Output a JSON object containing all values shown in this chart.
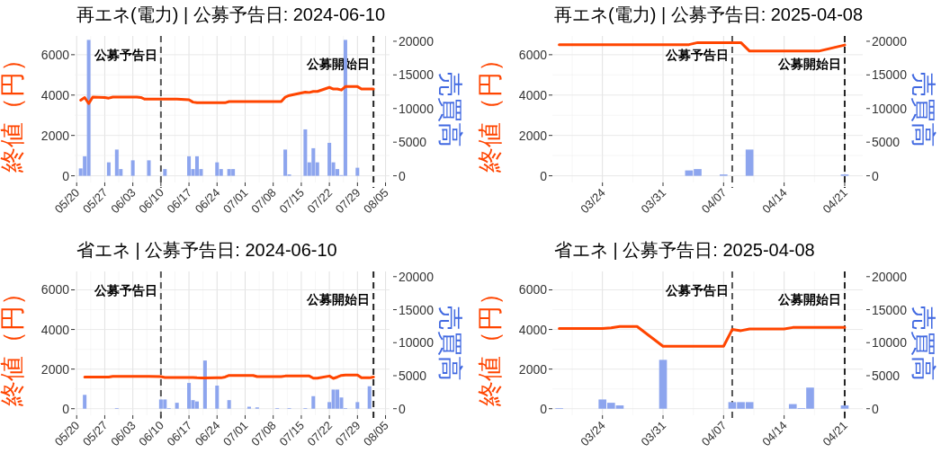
{
  "chart_data": [
    {
      "type": "bar",
      "title": "再エネ(電力) | 公募予告日: 2024-06-10",
      "ylabel": "終値（円）",
      "y2label": "売買高",
      "grid": true,
      "xlim": [
        "2024-05-19T12:00",
        "2024-08-06T00:00"
      ],
      "xticks": [
        {
          "value": "2024-05-20",
          "label": "05/20"
        },
        {
          "value": "2024-05-27",
          "label": "05/27"
        },
        {
          "value": "2024-06-03",
          "label": "06/03"
        },
        {
          "value": "2024-06-10",
          "label": "06/10"
        },
        {
          "value": "2024-06-17",
          "label": "06/17"
        },
        {
          "value": "2024-06-24",
          "label": "06/24"
        },
        {
          "value": "2024-07-01",
          "label": "07/01"
        },
        {
          "value": "2024-07-08",
          "label": "07/08"
        },
        {
          "value": "2024-07-15",
          "label": "07/15"
        },
        {
          "value": "2024-07-22",
          "label": "07/22"
        },
        {
          "value": "2024-07-29",
          "label": "07/29"
        },
        {
          "value": "2024-08-05",
          "label": "08/05"
        }
      ],
      "ylim": [
        -330,
        6930
      ],
      "yticks": [
        0,
        2000,
        4000,
        6000
      ],
      "y2lim": [
        -990,
        20790
      ],
      "y2ticks": [
        0,
        5000,
        10000,
        15000,
        20000
      ],
      "ref_lines": [
        {
          "axis": "x",
          "value": "2024-06-10",
          "label": "公募予告日",
          "color": "#555555",
          "line_style": "dashed"
        },
        {
          "axis": "x",
          "value": "2024-08-02",
          "label": "公募開始日",
          "color": "#222222",
          "line_style": "dashed"
        }
      ],
      "series": [
        {
          "axis": "y2",
          "color": "#8da5ee",
          "x": [
            "2024-05-21",
            "2024-05-22",
            "2024-05-23",
            "2024-05-28",
            "2024-05-30",
            "2024-05-31",
            "2024-06-03",
            "2024-06-07",
            "2024-06-11",
            "2024-06-17",
            "2024-06-18",
            "2024-06-19",
            "2024-06-20",
            "2024-06-24",
            "2024-06-25",
            "2024-06-27",
            "2024-06-28",
            "2024-07-11",
            "2024-07-12",
            "2024-07-16",
            "2024-07-17",
            "2024-07-18",
            "2024-07-19",
            "2024-07-22",
            "2024-07-23",
            "2024-07-24",
            "2024-07-25",
            "2024-07-26",
            "2024-07-29"
          ],
          "values": [
            1100,
            2900,
            20200,
            2000,
            3900,
            1000,
            2300,
            2300,
            1000,
            2900,
            1000,
            2900,
            1000,
            2000,
            1000,
            1000,
            1000,
            3900,
            200,
            6900,
            2000,
            4100,
            2000,
            4900,
            2000,
            1000,
            100,
            20200,
            1200
          ]
        },
        {
          "type": "line",
          "axis": "y",
          "color": "#ff4500",
          "x": [
            "2024-05-21",
            "2024-05-22",
            "2024-05-23",
            "2024-05-24",
            "2024-05-27",
            "2024-05-28",
            "2024-05-29",
            "2024-05-30",
            "2024-05-31",
            "2024-06-03",
            "2024-06-04",
            "2024-06-05",
            "2024-06-06",
            "2024-06-07",
            "2024-06-10",
            "2024-06-11",
            "2024-06-12",
            "2024-06-13",
            "2024-06-14",
            "2024-06-17",
            "2024-06-18",
            "2024-06-19",
            "2024-06-20",
            "2024-06-21",
            "2024-06-24",
            "2024-06-25",
            "2024-06-26",
            "2024-06-27",
            "2024-06-28",
            "2024-07-01",
            "2024-07-02",
            "2024-07-03",
            "2024-07-04",
            "2024-07-05",
            "2024-07-08",
            "2024-07-09",
            "2024-07-10",
            "2024-07-11",
            "2024-07-12",
            "2024-07-16",
            "2024-07-17",
            "2024-07-18",
            "2024-07-19",
            "2024-07-22",
            "2024-07-23",
            "2024-07-24",
            "2024-07-25",
            "2024-07-26",
            "2024-07-29",
            "2024-07-30",
            "2024-07-31",
            "2024-08-01",
            "2024-08-02"
          ],
          "values": [
            3750,
            3880,
            3580,
            3900,
            3880,
            3850,
            3900,
            3900,
            3900,
            3900,
            3900,
            3880,
            3800,
            3800,
            3800,
            3800,
            3800,
            3800,
            3800,
            3770,
            3650,
            3620,
            3620,
            3620,
            3620,
            3620,
            3620,
            3680,
            3680,
            3680,
            3680,
            3680,
            3680,
            3680,
            3680,
            3680,
            3680,
            3900,
            3980,
            4150,
            4130,
            4180,
            4180,
            4380,
            4300,
            4300,
            4250,
            4420,
            4420,
            4300,
            4300,
            4300,
            4300
          ]
        }
      ]
    },
    {
      "type": "bar",
      "title": "再エネ(電力) | 公募予告日: 2025-04-08",
      "ylabel": "終値（円）",
      "y2label": "売買高",
      "grid": true,
      "xlim": [
        "2025-03-18T05:00",
        "2025-04-23T02:00"
      ],
      "xticks": [
        {
          "value": "2025-03-24",
          "label": "03/24"
        },
        {
          "value": "2025-03-31",
          "label": "03/31"
        },
        {
          "value": "2025-04-07",
          "label": "04/07"
        },
        {
          "value": "2025-04-14",
          "label": "04/14"
        },
        {
          "value": "2025-04-21",
          "label": "04/21"
        }
      ],
      "ylim": [
        -330,
        6930
      ],
      "yticks": [
        0,
        2000,
        4000,
        6000
      ],
      "y2lim": [
        -990,
        20790
      ],
      "y2ticks": [
        0,
        5000,
        10000,
        15000,
        20000
      ],
      "ref_lines": [
        {
          "axis": "x",
          "value": "2025-04-08",
          "label": "公募予告日",
          "color": "#555555",
          "line_style": "dashed"
        },
        {
          "axis": "x",
          "value": "2025-04-21",
          "label": "公募開始日",
          "color": "#222222",
          "line_style": "dashed"
        }
      ],
      "series": [
        {
          "axis": "y2",
          "color": "#8da5ee",
          "x": [
            "2025-04-03",
            "2025-04-04",
            "2025-04-07",
            "2025-04-10",
            "2025-04-21"
          ],
          "values": [
            800,
            1000,
            200,
            3900,
            200
          ]
        },
        {
          "type": "line",
          "axis": "y",
          "color": "#ff4500",
          "x": [
            "2025-03-19",
            "2025-03-21",
            "2025-03-24",
            "2025-03-25",
            "2025-03-26",
            "2025-03-27",
            "2025-03-28",
            "2025-03-31",
            "2025-04-01",
            "2025-04-02",
            "2025-04-03",
            "2025-04-04",
            "2025-04-07",
            "2025-04-08",
            "2025-04-09",
            "2025-04-10",
            "2025-04-11",
            "2025-04-14",
            "2025-04-15",
            "2025-04-16",
            "2025-04-17",
            "2025-04-18",
            "2025-04-21"
          ],
          "values": [
            6500,
            6500,
            6500,
            6500,
            6500,
            6500,
            6500,
            6500,
            6500,
            6500,
            6500,
            6600,
            6600,
            6600,
            6600,
            6180,
            6180,
            6180,
            6180,
            6180,
            6180,
            6180,
            6480
          ]
        }
      ]
    },
    {
      "type": "bar",
      "title": "省エネ | 公募予告日: 2024-06-10",
      "ylabel": "終値（円）",
      "y2label": "売買高",
      "grid": true,
      "xlim": [
        "2024-05-19T12:00",
        "2024-08-06T00:00"
      ],
      "xticks": [
        {
          "value": "2024-05-20",
          "label": "05/20"
        },
        {
          "value": "2024-05-27",
          "label": "05/27"
        },
        {
          "value": "2024-06-03",
          "label": "06/03"
        },
        {
          "value": "2024-06-10",
          "label": "06/10"
        },
        {
          "value": "2024-06-17",
          "label": "06/17"
        },
        {
          "value": "2024-06-24",
          "label": "06/24"
        },
        {
          "value": "2024-07-01",
          "label": "07/01"
        },
        {
          "value": "2024-07-08",
          "label": "07/08"
        },
        {
          "value": "2024-07-15",
          "label": "07/15"
        },
        {
          "value": "2024-07-22",
          "label": "07/22"
        },
        {
          "value": "2024-07-29",
          "label": "07/29"
        },
        {
          "value": "2024-08-05",
          "label": "08/05"
        }
      ],
      "ylim": [
        -330,
        6930
      ],
      "yticks": [
        0,
        2000,
        4000,
        6000
      ],
      "y2lim": [
        -990,
        20790
      ],
      "y2ticks": [
        0,
        5000,
        10000,
        15000,
        20000
      ],
      "ref_lines": [
        {
          "axis": "x",
          "value": "2024-06-10",
          "label": "公募予告日",
          "color": "#555555",
          "line_style": "dashed"
        },
        {
          "axis": "x",
          "value": "2024-08-02",
          "label": "公募開始日",
          "color": "#222222",
          "line_style": "dashed"
        }
      ],
      "series": [
        {
          "axis": "y2",
          "color": "#8da5ee",
          "x": [
            "2024-05-22",
            "2024-05-30",
            "2024-06-10",
            "2024-06-11",
            "2024-06-12",
            "2024-06-14",
            "2024-06-17",
            "2024-06-18",
            "2024-06-19",
            "2024-06-21",
            "2024-06-24",
            "2024-06-27",
            "2024-07-02",
            "2024-07-04",
            "2024-07-09",
            "2024-07-12",
            "2024-07-16",
            "2024-07-18",
            "2024-07-22",
            "2024-07-23",
            "2024-07-24",
            "2024-07-25",
            "2024-07-26",
            "2024-07-29",
            "2024-08-01"
          ],
          "values": [
            2100,
            100,
            1400,
            1400,
            100,
            900,
            3900,
            1300,
            1100,
            7300,
            3500,
            1300,
            300,
            200,
            100,
            100,
            100,
            1900,
            1000,
            2900,
            2900,
            1700,
            100,
            1000,
            3400
          ]
        },
        {
          "type": "line",
          "axis": "y",
          "color": "#ff4500",
          "x": [
            "2024-05-22",
            "2024-05-23",
            "2024-05-24",
            "2024-05-27",
            "2024-05-28",
            "2024-05-29",
            "2024-05-30",
            "2024-05-31",
            "2024-06-03",
            "2024-06-04",
            "2024-06-05",
            "2024-06-06",
            "2024-06-07",
            "2024-06-10",
            "2024-06-11",
            "2024-06-12",
            "2024-06-13",
            "2024-06-14",
            "2024-06-17",
            "2024-06-18",
            "2024-06-19",
            "2024-06-20",
            "2024-06-21",
            "2024-06-24",
            "2024-06-25",
            "2024-06-26",
            "2024-06-27",
            "2024-06-28",
            "2024-07-01",
            "2024-07-02",
            "2024-07-03",
            "2024-07-04",
            "2024-07-05",
            "2024-07-08",
            "2024-07-09",
            "2024-07-10",
            "2024-07-11",
            "2024-07-12",
            "2024-07-16",
            "2024-07-17",
            "2024-07-18",
            "2024-07-19",
            "2024-07-22",
            "2024-07-23",
            "2024-07-24",
            "2024-07-25",
            "2024-07-26",
            "2024-07-29",
            "2024-07-30",
            "2024-07-31",
            "2024-08-01",
            "2024-08-02"
          ],
          "values": [
            1600,
            1600,
            1600,
            1600,
            1600,
            1630,
            1630,
            1630,
            1630,
            1630,
            1630,
            1630,
            1630,
            1620,
            1580,
            1580,
            1580,
            1580,
            1580,
            1580,
            1560,
            1550,
            1550,
            1560,
            1560,
            1600,
            1680,
            1680,
            1680,
            1680,
            1680,
            1620,
            1620,
            1620,
            1620,
            1620,
            1650,
            1650,
            1650,
            1650,
            1540,
            1540,
            1650,
            1530,
            1600,
            1680,
            1700,
            1700,
            1560,
            1560,
            1560,
            1600
          ]
        }
      ]
    },
    {
      "type": "bar",
      "title": "省エネ | 公募予告日: 2025-04-08",
      "ylabel": "終値（円）",
      "y2label": "売買高",
      "grid": true,
      "xlim": [
        "2025-03-18T05:00",
        "2025-04-23T02:00"
      ],
      "xticks": [
        {
          "value": "2025-03-24",
          "label": "03/24"
        },
        {
          "value": "2025-03-31",
          "label": "03/31"
        },
        {
          "value": "2025-04-07",
          "label": "04/07"
        },
        {
          "value": "2025-04-14",
          "label": "04/14"
        },
        {
          "value": "2025-04-21",
          "label": "04/21"
        }
      ],
      "ylim": [
        -330,
        6930
      ],
      "yticks": [
        0,
        2000,
        4000,
        6000
      ],
      "y2lim": [
        -990,
        20790
      ],
      "y2ticks": [
        0,
        5000,
        10000,
        15000,
        20000
      ],
      "ref_lines": [
        {
          "axis": "x",
          "value": "2025-04-08",
          "label": "公募予告日",
          "color": "#555555",
          "line_style": "dashed"
        },
        {
          "axis": "x",
          "value": "2025-04-21",
          "label": "公募開始日",
          "color": "#222222",
          "line_style": "dashed"
        }
      ],
      "series": [
        {
          "axis": "y2",
          "color": "#8da5ee",
          "x": [
            "2025-03-19",
            "2025-03-24",
            "2025-03-25",
            "2025-03-26",
            "2025-03-31",
            "2025-04-08",
            "2025-04-09",
            "2025-04-10",
            "2025-04-15",
            "2025-04-16",
            "2025-04-17",
            "2025-04-21"
          ],
          "values": [
            100,
            1400,
            900,
            500,
            7400,
            1000,
            1000,
            1000,
            700,
            100,
            3200,
            500
          ]
        },
        {
          "type": "line",
          "axis": "y",
          "color": "#ff4500",
          "x": [
            "2025-03-19",
            "2025-03-21",
            "2025-03-24",
            "2025-03-25",
            "2025-03-26",
            "2025-03-27",
            "2025-03-28",
            "2025-03-31",
            "2025-04-01",
            "2025-04-02",
            "2025-04-03",
            "2025-04-04",
            "2025-04-07",
            "2025-04-08",
            "2025-04-09",
            "2025-04-10",
            "2025-04-11",
            "2025-04-14",
            "2025-04-15",
            "2025-04-16",
            "2025-04-17",
            "2025-04-18",
            "2025-04-21"
          ],
          "values": [
            4050,
            4050,
            4050,
            4080,
            4150,
            4150,
            4150,
            3150,
            3150,
            3150,
            3150,
            3150,
            3150,
            4000,
            3940,
            4030,
            4030,
            4030,
            4100,
            4100,
            4100,
            4100,
            4100
          ]
        }
      ]
    }
  ]
}
